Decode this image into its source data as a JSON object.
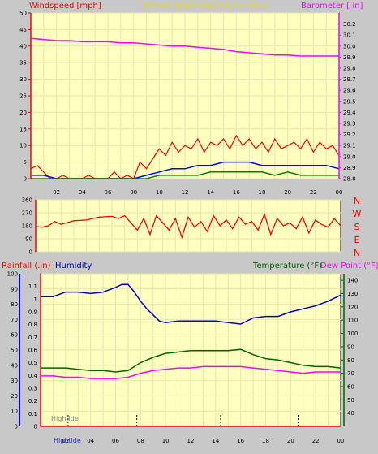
{
  "colors": {
    "background": "#c8c8c8",
    "plot_bg": "#ffffc0",
    "grid": "#e6e6b0",
    "wind_speed": "#ff0000",
    "wind_avg": "#0000ff",
    "wind_low": "#008000",
    "barometer": "#ff00ff",
    "direction": "#ff0000",
    "humidity": "#0000cc",
    "temperature": "#006400",
    "dew_point": "#ff00ff",
    "tide_marker": "#000000"
  },
  "header": {
    "wind_title": "Windspeed [mph]",
    "graph_title": "24 hour graph day   July 01 2022",
    "barometer_title": "Barometer [ in]"
  },
  "labels_bottom": {
    "rain": "Rainfall (.in)",
    "humidity": "Humidity",
    "temperature": "Temperature (°F)",
    "dewpoint": "Dew Point (°F)",
    "hightide": "Hightide",
    "hightide2": "Hightide"
  },
  "x_ticks": [
    "02",
    "04",
    "06",
    "08",
    "10",
    "12",
    "14",
    "16",
    "18",
    "20",
    "22",
    "00"
  ],
  "compass": [
    "N",
    "W",
    "S",
    "E",
    "N"
  ],
  "chart_data": [
    {
      "type": "line",
      "id": "wind-barometer",
      "x_unit": "hour",
      "xlim": [
        0,
        24
      ],
      "ylim_left": [
        0,
        50
      ],
      "ylim_right": [
        28.8,
        30.3
      ],
      "y_ticks_left": [
        0,
        5,
        10,
        15,
        20,
        25,
        30,
        35,
        40,
        45,
        50
      ],
      "y_ticks_right": [
        28.8,
        28.9,
        29.0,
        29.1,
        29.2,
        29.3,
        29.4,
        29.5,
        29.6,
        29.7,
        29.8,
        29.9,
        30.0,
        30.1,
        30.2
      ],
      "x_tick_labels": [
        "02",
        "04",
        "06",
        "08",
        "10",
        "12",
        "14",
        "16",
        "18",
        "20",
        "22",
        "00"
      ],
      "series": [
        {
          "name": "Windspeed",
          "axis": "left",
          "x": [
            0,
            0.5,
            1,
            1.5,
            2,
            2.5,
            3,
            3.5,
            4,
            4.5,
            5,
            5.5,
            6,
            6.5,
            7,
            7.5,
            8,
            8.5,
            9,
            9.5,
            10,
            10.5,
            11,
            11.5,
            12,
            12.5,
            13,
            13.5,
            14,
            14.5,
            15,
            15.5,
            16,
            16.5,
            17,
            17.5,
            18,
            18.5,
            19,
            19.5,
            20,
            20.5,
            21,
            21.5,
            22,
            22.5,
            23,
            23.5,
            24
          ],
          "values": [
            3,
            4,
            2,
            0,
            0,
            1,
            0,
            0,
            0,
            1,
            0,
            0,
            0,
            2,
            0,
            1,
            0,
            5,
            3,
            6,
            9,
            7,
            11,
            8,
            10,
            9,
            12,
            8,
            11,
            10,
            12,
            9,
            13,
            10,
            12,
            9,
            11,
            8,
            12,
            9,
            10,
            11,
            9,
            12,
            8,
            11,
            9,
            10,
            7
          ]
        },
        {
          "name": "Wind average",
          "axis": "left",
          "x": [
            0,
            1,
            2,
            3,
            4,
            5,
            6,
            7,
            8,
            9,
            10,
            11,
            12,
            13,
            14,
            15,
            16,
            17,
            18,
            19,
            20,
            21,
            22,
            23,
            24
          ],
          "values": [
            1,
            1,
            0,
            0,
            0,
            0,
            0,
            0,
            0,
            1,
            2,
            3,
            3,
            4,
            4,
            5,
            5,
            5,
            4,
            4,
            4,
            4,
            4,
            4,
            3
          ]
        },
        {
          "name": "Wind low",
          "axis": "left",
          "x": [
            0,
            1,
            2,
            3,
            4,
            5,
            6,
            7,
            8,
            9,
            10,
            11,
            12,
            13,
            14,
            15,
            16,
            17,
            18,
            19,
            20,
            21,
            22,
            23,
            24
          ],
          "values": [
            0,
            0,
            0,
            0,
            0,
            0,
            0,
            0,
            0,
            0,
            1,
            1,
            1,
            1,
            2,
            2,
            2,
            2,
            2,
            1,
            2,
            1,
            1,
            1,
            1
          ]
        },
        {
          "name": "Barometer",
          "axis": "right",
          "x": [
            0,
            1,
            2,
            3,
            4,
            5,
            6,
            7,
            8,
            9,
            10,
            11,
            12,
            13,
            14,
            15,
            16,
            17,
            18,
            19,
            20,
            21,
            22,
            23,
            24
          ],
          "values": [
            30.07,
            30.06,
            30.05,
            30.05,
            30.04,
            30.04,
            30.04,
            30.03,
            30.03,
            30.02,
            30.01,
            30.0,
            30.0,
            29.99,
            29.98,
            29.97,
            29.95,
            29.94,
            29.93,
            29.92,
            29.92,
            29.91,
            29.91,
            29.91,
            29.91
          ]
        }
      ]
    },
    {
      "type": "line",
      "id": "wind-direction",
      "x_unit": "hour",
      "xlim": [
        0,
        24
      ],
      "ylim": [
        0,
        360
      ],
      "y_ticks": [
        0,
        90,
        180,
        270,
        360
      ],
      "series": [
        {
          "name": "Wind direction",
          "x": [
            0,
            0.5,
            1,
            1.5,
            2,
            3,
            4,
            5,
            6,
            6.5,
            7,
            7.5,
            8,
            8.5,
            9,
            9.5,
            10,
            10.5,
            11,
            11.5,
            12,
            12.5,
            13,
            13.5,
            14,
            14.5,
            15,
            15.5,
            16,
            16.5,
            17,
            17.5,
            18,
            18.5,
            19,
            19.5,
            20,
            20.5,
            21,
            21.5,
            22,
            22.5,
            23,
            23.5,
            24
          ],
          "values": [
            175,
            170,
            180,
            210,
            190,
            215,
            220,
            240,
            245,
            230,
            250,
            200,
            150,
            230,
            120,
            250,
            200,
            150,
            230,
            100,
            240,
            170,
            210,
            140,
            250,
            180,
            220,
            160,
            240,
            190,
            210,
            150,
            260,
            120,
            230,
            180,
            200,
            160,
            240,
            130,
            220,
            190,
            170,
            230,
            180
          ]
        }
      ]
    },
    {
      "type": "line",
      "id": "rain-humidity-temperature",
      "x_unit": "hour",
      "xlim": [
        0,
        24
      ],
      "ylim_rain": [
        0,
        1.2
      ],
      "ylim_humidity": [
        0,
        100
      ],
      "ylim_temperature": [
        30,
        145
      ],
      "y_ticks_rain": [
        0,
        0.1,
        0.2,
        0.3,
        0.4,
        0.5,
        0.6,
        0.7,
        0.8,
        0.9,
        1.0,
        1.1
      ],
      "y_ticks_humidity": [
        0,
        10,
        20,
        30,
        40,
        50,
        60,
        70,
        80,
        90,
        100
      ],
      "y_ticks_temperature": [
        40,
        50,
        60,
        70,
        80,
        90,
        100,
        110,
        120,
        130,
        140
      ],
      "series": [
        {
          "name": "Humidity",
          "axis": "humidity",
          "x": [
            0,
            1,
            2,
            3,
            4,
            5,
            6,
            6.5,
            7,
            7.5,
            8,
            8.5,
            9,
            9.5,
            10,
            11,
            12,
            13,
            14,
            15,
            16,
            16.5,
            17,
            18,
            19,
            20,
            21,
            22,
            23,
            24
          ],
          "values": [
            85,
            85,
            88,
            88,
            87,
            88,
            91,
            93,
            93,
            88,
            82,
            77,
            73,
            69,
            68,
            69,
            69,
            69,
            69,
            68,
            67,
            69,
            71,
            72,
            72,
            75,
            77,
            79,
            82,
            86
          ]
        },
        {
          "name": "Rainfall",
          "axis": "rain",
          "x": [
            0,
            24
          ],
          "values": [
            0,
            0
          ]
        },
        {
          "name": "Temperature",
          "axis": "temperature",
          "x": [
            0,
            1,
            2,
            3,
            4,
            5,
            6,
            7,
            8,
            9,
            10,
            11,
            12,
            13,
            14,
            15,
            16,
            17,
            18,
            19,
            20,
            21,
            22,
            23,
            24
          ],
          "values": [
            74,
            74,
            74,
            73,
            72,
            72,
            71,
            72,
            78,
            82,
            85,
            86,
            87,
            87,
            87,
            87,
            88,
            84,
            81,
            80,
            78,
            76,
            75,
            75,
            74
          ]
        },
        {
          "name": "Dew Point",
          "axis": "temperature",
          "x": [
            0,
            1,
            2,
            3,
            4,
            5,
            6,
            7,
            8,
            9,
            10,
            11,
            12,
            13,
            14,
            15,
            16,
            17,
            18,
            19,
            20,
            21,
            22,
            23,
            24
          ],
          "values": [
            68,
            68,
            67,
            67,
            66,
            66,
            66,
            67,
            70,
            72,
            73,
            74,
            74,
            75,
            75,
            75,
            75,
            74,
            73,
            72,
            71,
            70,
            71,
            71,
            71
          ]
        }
      ],
      "tide_markers_hours": [
        2.2,
        7.7,
        14.4,
        20.6
      ]
    }
  ]
}
